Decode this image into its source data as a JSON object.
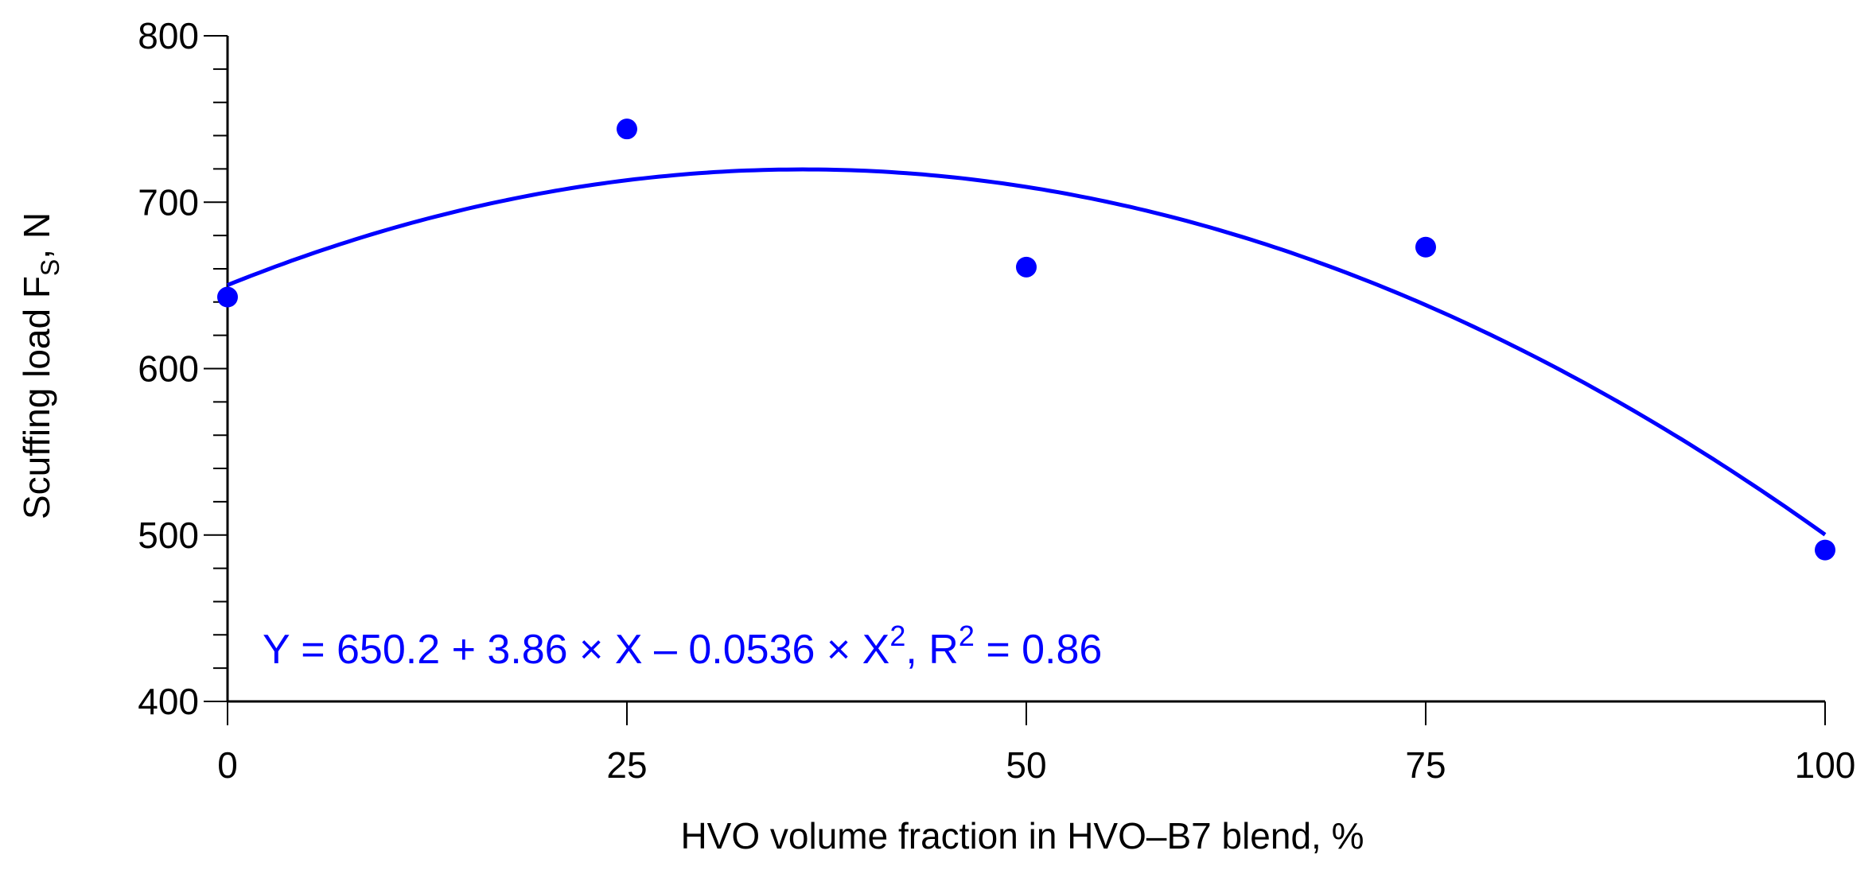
{
  "chart_data": {
    "type": "scatter",
    "title": "",
    "xlabel": "HVO volume fraction in HVO–B7 blend, %",
    "ylabel": {
      "prefix": "Scuffing load F",
      "subscript": "S",
      "suffix": ", N"
    },
    "xlim": [
      0,
      100
    ],
    "ylim": [
      400,
      800
    ],
    "x_ticks": [
      0,
      25,
      50,
      75,
      100
    ],
    "y_ticks": [
      400,
      500,
      600,
      700,
      800
    ],
    "y_minor_step": 20,
    "grid": false,
    "legend": "none",
    "series": [
      {
        "x": [
          0,
          25,
          50,
          75,
          100
        ],
        "y": [
          643,
          744,
          661,
          673,
          491
        ],
        "marker": "circle",
        "color": "#0000ff"
      }
    ],
    "fit": {
      "type": "quadratic",
      "coefficients": [
        650.2,
        3.86,
        -0.0536
      ],
      "r2": 0.86,
      "color": "#0000ff",
      "label": {
        "part1": "Y = 650.2 + 3.86 × X – 0.0536 × X",
        "sup1": "2",
        "part2": ", R",
        "sup2": "2",
        "part3": " = 0.86"
      }
    }
  }
}
